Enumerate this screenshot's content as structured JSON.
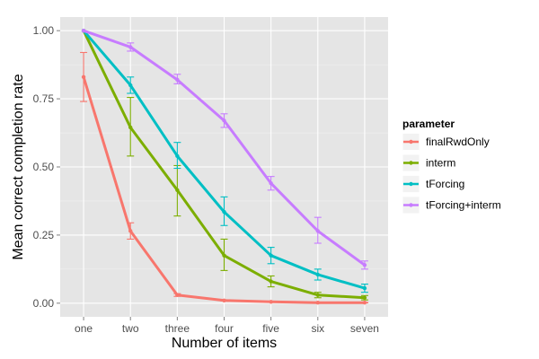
{
  "chart_data": {
    "type": "line",
    "categories": [
      "one",
      "two",
      "three",
      "four",
      "five",
      "six",
      "seven"
    ],
    "xlabel": "Number of items",
    "ylabel": "Mean correct completion rate",
    "ylim": [
      -0.05,
      1.05
    ],
    "yticks": [
      0.0,
      0.25,
      0.5,
      0.75,
      1.0
    ],
    "ytick_labels": [
      "0.00",
      "0.25",
      "0.50",
      "0.75",
      "1.00"
    ],
    "grid": true,
    "background": "#e5e5e5",
    "legend": {
      "title": "parameter",
      "placement": "right"
    },
    "series": [
      {
        "name": "finalRwdOnly",
        "color": "#f8766d",
        "values": [
          0.83,
          0.265,
          0.03,
          0.01,
          0.005,
          0.002,
          0.002
        ],
        "err_low": [
          0.74,
          0.235,
          0.025,
          0.008,
          0.003,
          0.001,
          0.001
        ],
        "err_high": [
          0.92,
          0.295,
          0.035,
          0.012,
          0.007,
          0.003,
          0.003
        ]
      },
      {
        "name": "interm",
        "color": "#7cae00",
        "values": [
          1.0,
          0.645,
          0.415,
          0.175,
          0.08,
          0.03,
          0.02
        ],
        "err_low": [
          1.0,
          0.54,
          0.32,
          0.12,
          0.06,
          0.02,
          0.012
        ],
        "err_high": [
          1.0,
          0.755,
          0.505,
          0.235,
          0.1,
          0.04,
          0.028
        ]
      },
      {
        "name": "tForcing",
        "color": "#00bfc4",
        "values": [
          1.0,
          0.8,
          0.54,
          0.335,
          0.175,
          0.105,
          0.055
        ],
        "err_low": [
          1.0,
          0.77,
          0.495,
          0.285,
          0.145,
          0.085,
          0.04
        ],
        "err_high": [
          1.0,
          0.83,
          0.59,
          0.39,
          0.205,
          0.125,
          0.07
        ]
      },
      {
        "name": "tForcing+interm",
        "color": "#c77cff",
        "values": [
          1.0,
          0.94,
          0.82,
          0.67,
          0.44,
          0.265,
          0.14
        ],
        "err_low": [
          1.0,
          0.925,
          0.805,
          0.645,
          0.415,
          0.22,
          0.125
        ],
        "err_high": [
          1.0,
          0.955,
          0.84,
          0.695,
          0.465,
          0.315,
          0.155
        ]
      }
    ]
  }
}
